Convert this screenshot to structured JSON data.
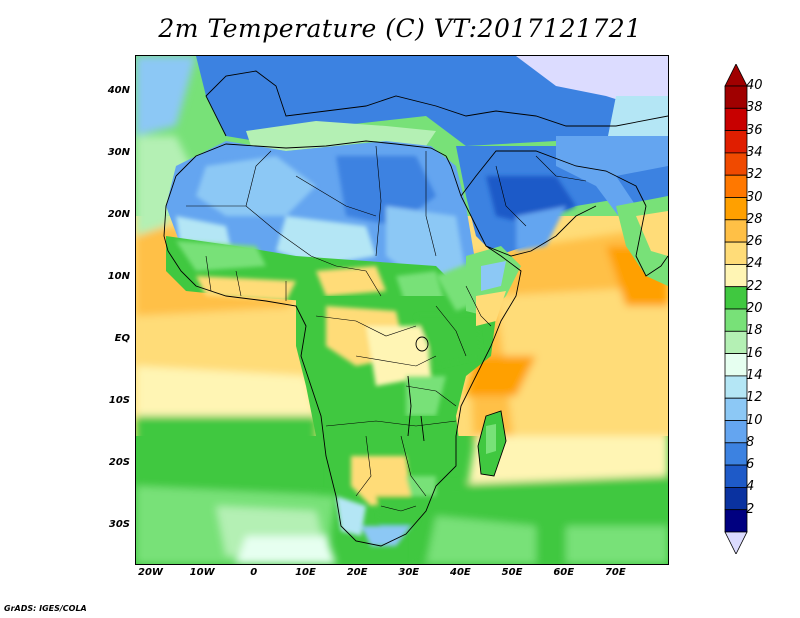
{
  "title": "2m Temperature (C) VT:2017121721",
  "credit": "GrADS: IGES/COLA",
  "map": {
    "lon_range": [
      -23,
      80
    ],
    "lat_range": [
      -36,
      46
    ],
    "lat_ticks": [
      {
        "value": 40,
        "label": "40N"
      },
      {
        "value": 30,
        "label": "30N"
      },
      {
        "value": 20,
        "label": "20N"
      },
      {
        "value": 10,
        "label": "10N"
      },
      {
        "value": 0,
        "label": "EQ"
      },
      {
        "value": -10,
        "label": "10S"
      },
      {
        "value": -20,
        "label": "20S"
      },
      {
        "value": -30,
        "label": "30S"
      }
    ],
    "lon_ticks": [
      {
        "value": -20,
        "label": "20W"
      },
      {
        "value": -10,
        "label": "10W"
      },
      {
        "value": 0,
        "label": "0"
      },
      {
        "value": 10,
        "label": "10E"
      },
      {
        "value": 20,
        "label": "20E"
      },
      {
        "value": 30,
        "label": "30E"
      },
      {
        "value": 40,
        "label": "40E"
      },
      {
        "value": 50,
        "label": "50E"
      },
      {
        "value": 60,
        "label": "60E"
      },
      {
        "value": 70,
        "label": "70E"
      }
    ]
  },
  "colorbar": {
    "labels": [
      "40",
      "38",
      "36",
      "34",
      "32",
      "30",
      "28",
      "26",
      "24",
      "22",
      "20",
      "18",
      "16",
      "14",
      "12",
      "10",
      "8",
      "6",
      "4",
      "2"
    ],
    "colors": [
      "#a00000",
      "#c80000",
      "#e01e00",
      "#f04a00",
      "#ff7800",
      "#ffa000",
      "#ffc046",
      "#ffdc78",
      "#fff5b4",
      "#40c840",
      "#78e178",
      "#b4f0b4",
      "#e6fff0",
      "#b4e6f5",
      "#8cc8f5",
      "#64a5f0",
      "#3c82e1",
      "#1e5ac8",
      "#0a32a0",
      "#000080"
    ],
    "top_color": "#a00000",
    "bottom_color": "#dcdcff"
  }
}
